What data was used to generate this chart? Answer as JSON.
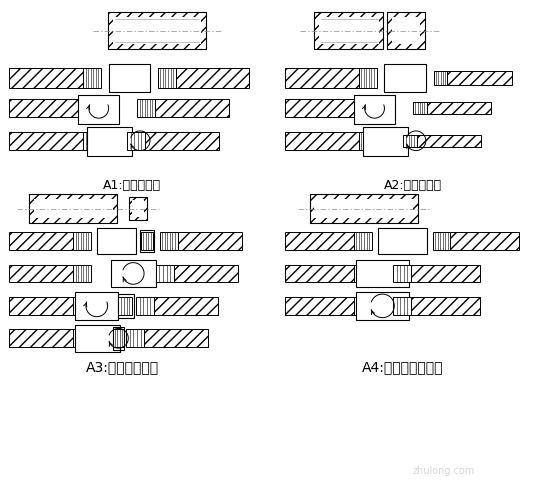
{
  "bg_color": "#ffffff",
  "label_A1": "A1:标准型接头",
  "label_A2": "A2:异径型接头",
  "label_A3": "A3:加锁母型接头",
  "label_A4": "A4:正反丝扣型接头",
  "font_size": 9,
  "watermark": "zhulong.com"
}
